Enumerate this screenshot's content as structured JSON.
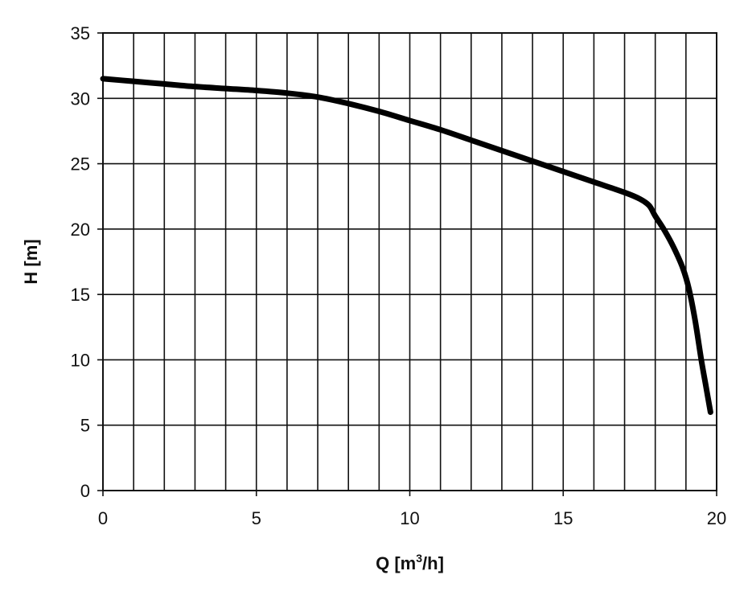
{
  "chart_data": {
    "type": "line",
    "title": "",
    "xlabel": "Q [m",
    "xlabel_superscript": "3",
    "xlabel_suffix": "/h]",
    "ylabel": "H [m]",
    "xlim": [
      0,
      20
    ],
    "ylim": [
      0,
      35
    ],
    "x_ticks": [
      0,
      5,
      10,
      15,
      20
    ],
    "y_ticks": [
      0,
      5,
      10,
      15,
      20,
      25,
      30,
      35
    ],
    "x_grid_step": 1,
    "y_grid_step": 5,
    "grid": true,
    "legend": "none",
    "series": [
      {
        "color": "#000000",
        "x": [
          0,
          1,
          2,
          3,
          4,
          5,
          6,
          7,
          8,
          9,
          10,
          11,
          12,
          13,
          14,
          15,
          16,
          17,
          17.5,
          17.8,
          18,
          18.3,
          18.6,
          18.9,
          19.1,
          19.3,
          19.5,
          19.65,
          19.8
        ],
        "y": [
          31.5,
          31.3,
          31.1,
          30.9,
          30.75,
          30.6,
          30.4,
          30.1,
          29.6,
          29.0,
          28.3,
          27.6,
          26.8,
          26.0,
          25.2,
          24.4,
          23.6,
          22.8,
          22.3,
          21.8,
          21.0,
          19.9,
          18.6,
          17.0,
          15.4,
          13.0,
          10.0,
          8.0,
          6.0
        ]
      }
    ]
  }
}
